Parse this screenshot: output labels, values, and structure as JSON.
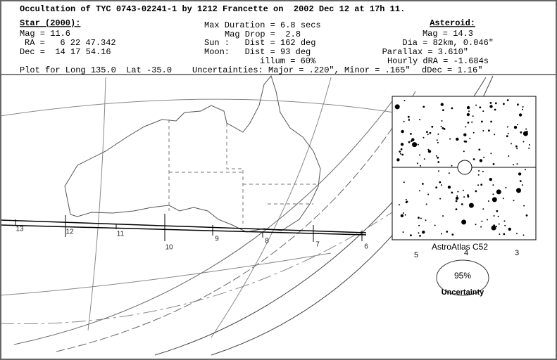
{
  "header": {
    "title": "Occultation of TYC 0743-02241-1 by 1212 Francette on  2002 Dec 12 at 17h 11.",
    "star": {
      "heading": "Star (2000):",
      "mag": "Mag = 11.6",
      "ra": "RA =   6 22 47.342",
      "dec": "Dec =  14 17 54.16"
    },
    "event": {
      "duration": "Max Duration = 6.8 secs",
      "mag_drop": "Mag Drop =  2.8",
      "sun": "Sun :   Dist = 162 deg",
      "moon": "Moon:   Dist = 93 deg",
      "illum": "illum = 60%"
    },
    "asteroid": {
      "heading": "Asteroid:",
      "mag": "Mag = 14.3",
      "dia": "Dia = 82km, 0.046\"",
      "parallax": "Parallax = 3.610\"",
      "hourly_dra": "Hourly dRA = -1.684s",
      "ddec": "dDec = 1.16\""
    },
    "plot_for": "Plot for Long 135.0  Lat -35.0",
    "uncertainties": "Uncertainties: Major = .220\", Minor = .165\""
  },
  "map": {
    "track_labels": [
      "13",
      "12",
      "11",
      "10",
      "9",
      "8",
      "7",
      "6"
    ]
  },
  "inset": {
    "label": "AstroAtlas C52",
    "scale_labels": [
      "5",
      "4",
      "3"
    ]
  },
  "uncertainty": {
    "percent": "95%",
    "label": "Uncertainty"
  }
}
